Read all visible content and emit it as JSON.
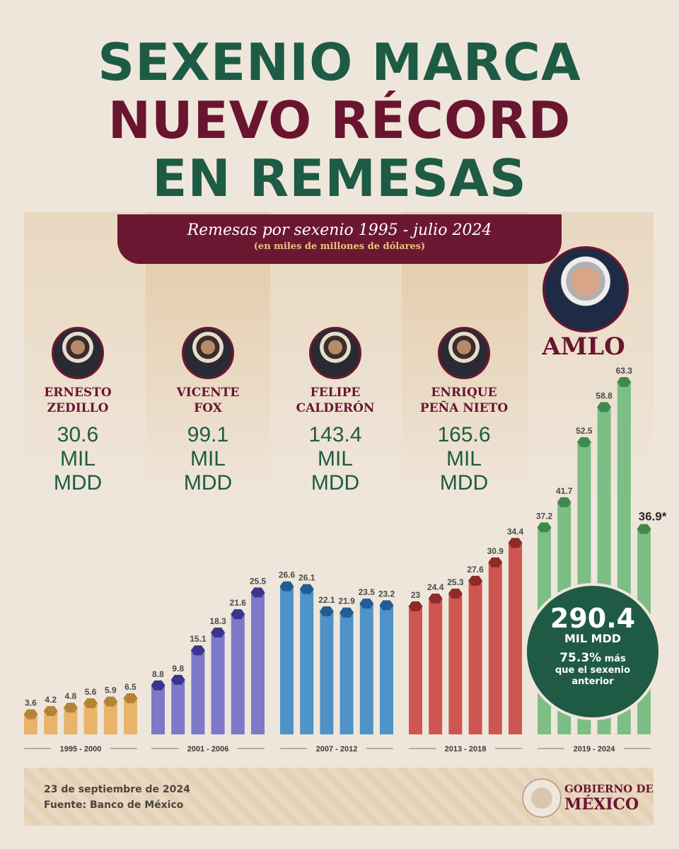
{
  "title": {
    "line1": "SEXENIO MARCA",
    "line2": "NUEVO RÉCORD",
    "line3": "EN REMESAS"
  },
  "subtitle": {
    "main": "Remesas por sexenio 1995 - julio 2024",
    "units": "(en miles de millones de dólares)"
  },
  "presidents": [
    {
      "name1": "ERNESTO",
      "name2": "ZEDILLO",
      "total": "30.6",
      "unit1": "MIL",
      "unit2": "MDD"
    },
    {
      "name1": "VICENTE",
      "name2": "FOX",
      "total": "99.1",
      "unit1": "MIL",
      "unit2": "MDD"
    },
    {
      "name1": "FELIPE",
      "name2": "CALDERÓN",
      "total": "143.4",
      "unit1": "MIL",
      "unit2": "MDD"
    },
    {
      "name1": "ENRIQUE",
      "name2": "PEÑA NIETO",
      "total": "165.6",
      "unit1": "MIL",
      "unit2": "MDD"
    }
  ],
  "amlo": {
    "name": "AMLO",
    "total": "290.4",
    "unit": "MIL MDD",
    "pct": "75.3%",
    "pct_text1": "más",
    "pct_text2": "que el sexenio",
    "pct_text3": "anterior"
  },
  "footer": {
    "date": "23 de septiembre de 2024",
    "source": "Fuente: Banco de México",
    "gov1": "GOBIERNO DE",
    "gov2": "MÉXICO"
  },
  "colors": {
    "zedillo": "#e8b46a",
    "fox": "#7e78c8",
    "calderon": "#4d93c7",
    "pena": "#cf5550",
    "amlo": "#7cbe84",
    "green_dark": "#1e5b45",
    "maroon": "#6a1530"
  },
  "chart_data": {
    "type": "bar",
    "title": "Remesas por sexenio 1995 - julio 2024",
    "ylabel": "(en miles de millones de dólares)",
    "ylim": [
      0,
      70
    ],
    "groups": [
      {
        "label": "1995 - 2000",
        "values": [
          3.6,
          4.2,
          4.8,
          5.6,
          5.9,
          6.5
        ],
        "labels": [
          "3.6",
          "4.2",
          "4.8",
          "5.6",
          "5.9",
          "6.5"
        ]
      },
      {
        "label": "2001 - 2006",
        "values": [
          8.8,
          9.8,
          15.1,
          18.3,
          21.6,
          25.5
        ],
        "labels": [
          "8.8",
          "9.8",
          "15.1",
          "18.3",
          "21.6",
          "25.5"
        ]
      },
      {
        "label": "2007 - 2012",
        "values": [
          26.6,
          26.1,
          22.1,
          21.9,
          23.5,
          23.2
        ],
        "labels": [
          "26.6",
          "26.1",
          "22.1",
          "21.9",
          "23.5",
          "23.2"
        ]
      },
      {
        "label": "2013 - 2018",
        "values": [
          23,
          24.4,
          25.3,
          27.6,
          30.9,
          34.4
        ],
        "labels": [
          "23",
          "24.4",
          "25.3",
          "27.6",
          "30.9",
          "34.4"
        ]
      },
      {
        "label": "2019 - 2024",
        "values": [
          37.2,
          41.7,
          52.5,
          58.8,
          63.3,
          36.9
        ],
        "labels": [
          "37.2",
          "41.7",
          "52.5",
          "58.8",
          "63.3",
          "36.9*"
        ]
      }
    ]
  }
}
